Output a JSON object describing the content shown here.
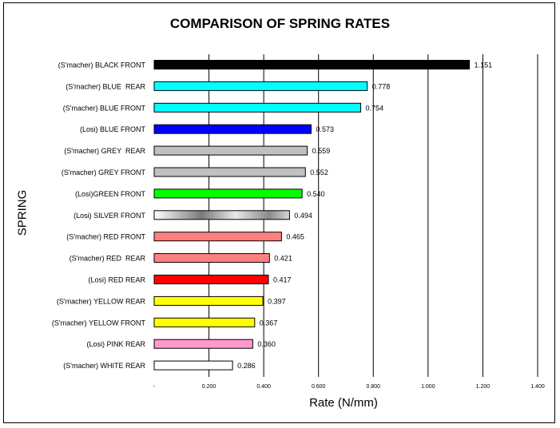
{
  "chart_data": {
    "type": "bar",
    "orientation": "horizontal",
    "title": "COMPARISON OF SPRING RATES",
    "xlabel": "Rate (N/mm)",
    "ylabel": "SPRING",
    "xlim": [
      0,
      1.4
    ],
    "xticks": [
      0,
      0.2,
      0.4,
      0.6,
      0.8,
      1.0,
      1.2,
      1.4
    ],
    "xtick_labels": [
      "-",
      "0.200",
      "0.400",
      "0.600",
      "0.800",
      "1.000",
      "1.200",
      "1.400"
    ],
    "grid": "vertical",
    "legend": "none",
    "bars": [
      {
        "label": "(S'macher) BLACK FRONT",
        "value": 1.151,
        "value_label": "1.151",
        "color": "#000000"
      },
      {
        "label": "(S'macher) BLUE  REAR",
        "value": 0.778,
        "value_label": "0.778",
        "color": "#00ffff"
      },
      {
        "label": "(S'macher) BLUE FRONT",
        "value": 0.754,
        "value_label": "0.754",
        "color": "#00ffff"
      },
      {
        "label": "(Losi) BLUE FRONT",
        "value": 0.573,
        "value_label": "0.573",
        "color": "#0000ff"
      },
      {
        "label": "(S'macher) GREY  REAR",
        "value": 0.559,
        "value_label": "0.559",
        "color": "#c0c0c0"
      },
      {
        "label": "(S'macher) GREY FRONT",
        "value": 0.552,
        "value_label": "0.552",
        "color": "#c0c0c0"
      },
      {
        "label": "(Losi)GREEN FRONT",
        "value": 0.54,
        "value_label": "0.540",
        "color": "#00ff00"
      },
      {
        "label": "(Losi) SILVER FRONT",
        "value": 0.494,
        "value_label": "0.494",
        "color": "silver-gradient"
      },
      {
        "label": "(S'macher) RED FRONT",
        "value": 0.465,
        "value_label": "0.465",
        "color": "#ff8080"
      },
      {
        "label": "(S'macher) RED  REAR",
        "value": 0.421,
        "value_label": "0.421",
        "color": "#ff8080"
      },
      {
        "label": "(Losi) RED REAR",
        "value": 0.417,
        "value_label": "0.417",
        "color": "#ff0000"
      },
      {
        "label": "(S'macher) YELLOW REAR",
        "value": 0.397,
        "value_label": "0.397",
        "color": "#ffff00"
      },
      {
        "label": "(S'macher) YELLOW FRONT",
        "value": 0.367,
        "value_label": "0.367",
        "color": "#ffff00"
      },
      {
        "label": "(Losi) PINK REAR",
        "value": 0.36,
        "value_label": "0.360",
        "color": "#ff99cc"
      },
      {
        "label": "(S'macher) WHITE REAR",
        "value": 0.286,
        "value_label": "0.286",
        "color": "#ffffff"
      }
    ]
  }
}
